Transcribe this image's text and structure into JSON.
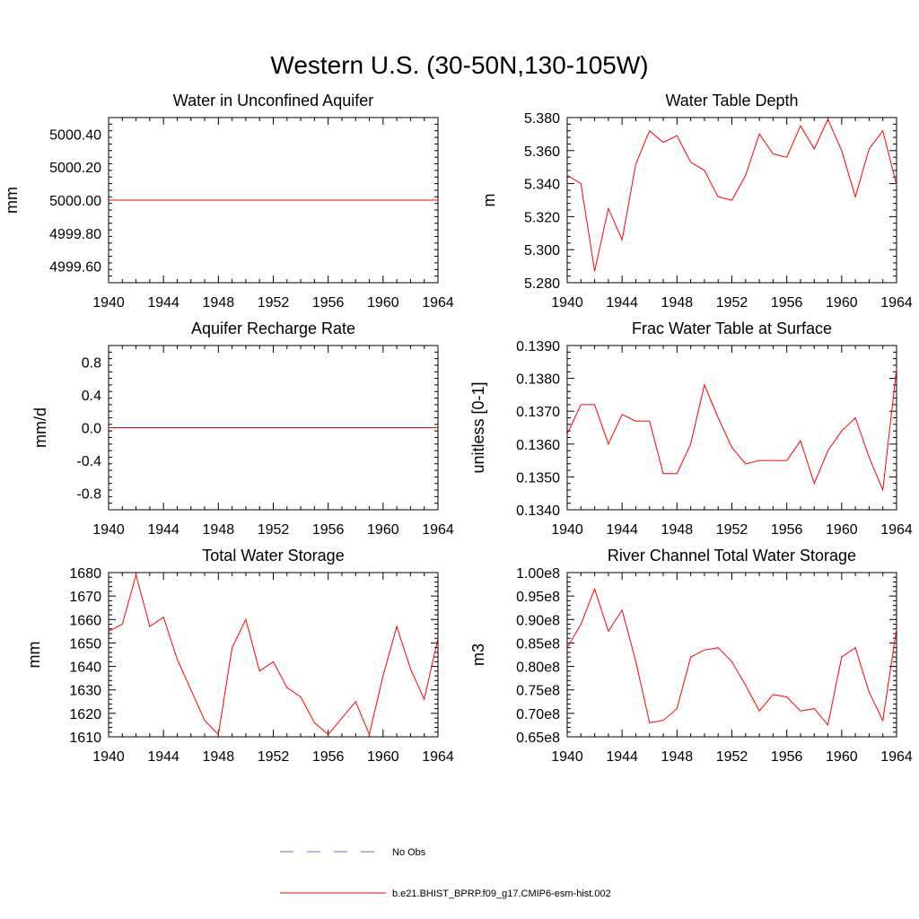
{
  "figure": {
    "title": "Western U.S. (30-50N,130-105W)"
  },
  "legend": {
    "entries": [
      {
        "label": "No Obs",
        "color": "#5b6fd6",
        "style": "dashed"
      },
      {
        "label": "b.e21.BHIST_BPRP.f09_g17.CMIP6-esm-hist.002",
        "color": "#ff0000",
        "style": "solid"
      }
    ]
  },
  "chart_data": [
    {
      "type": "line",
      "title": "Water in Unconfined Aquifer",
      "ylabel": "mm",
      "xlim": [
        1940,
        1964
      ],
      "ylim": [
        4999.5,
        5000.5
      ],
      "xticks": [
        1940,
        1944,
        1948,
        1952,
        1956,
        1960,
        1964
      ],
      "xtick_labels": [
        "1940",
        "1944",
        "1948",
        "1952",
        "1956",
        "1960",
        "1964"
      ],
      "yticks": [
        4999.6,
        4999.8,
        5000.0,
        5000.2,
        5000.4
      ],
      "ytick_labels": [
        "4999.60",
        "4999.80",
        "5000.00",
        "5000.20",
        "5000.40"
      ],
      "series": [
        {
          "color": "#ff0000",
          "x": [
            1940,
            1964
          ],
          "y": [
            5000.0,
            5000.0
          ]
        }
      ]
    },
    {
      "type": "line",
      "title": "Water Table Depth",
      "ylabel": "m",
      "xlim": [
        1940,
        1964
      ],
      "ylim": [
        5.28,
        5.38
      ],
      "xticks": [
        1940,
        1944,
        1948,
        1952,
        1956,
        1960,
        1964
      ],
      "xtick_labels": [
        "1940",
        "1944",
        "1948",
        "1952",
        "1956",
        "1960",
        "1964"
      ],
      "yticks": [
        5.28,
        5.3,
        5.32,
        5.34,
        5.36,
        5.38
      ],
      "ytick_labels": [
        "5.280",
        "5.300",
        "5.320",
        "5.340",
        "5.360",
        "5.380"
      ],
      "series": [
        {
          "color": "#ff0000",
          "x": [
            1940,
            1941,
            1942,
            1943,
            1944,
            1945,
            1946,
            1947,
            1948,
            1949,
            1950,
            1951,
            1952,
            1953,
            1954,
            1955,
            1956,
            1957,
            1958,
            1959,
            1960,
            1961,
            1962,
            1963,
            1964
          ],
          "y": [
            5.345,
            5.34,
            5.287,
            5.325,
            5.306,
            5.352,
            5.372,
            5.365,
            5.369,
            5.353,
            5.348,
            5.332,
            5.33,
            5.345,
            5.37,
            5.358,
            5.356,
            5.375,
            5.361,
            5.379,
            5.36,
            5.332,
            5.361,
            5.372,
            5.339
          ]
        }
      ]
    },
    {
      "type": "line",
      "title": "Aquifer Recharge Rate",
      "ylabel": "mm/d",
      "xlim": [
        1940,
        1964
      ],
      "ylim": [
        -1.0,
        1.0
      ],
      "xticks": [
        1940,
        1944,
        1948,
        1952,
        1956,
        1960,
        1964
      ],
      "xtick_labels": [
        "1940",
        "1944",
        "1948",
        "1952",
        "1956",
        "1960",
        "1964"
      ],
      "yticks": [
        -0.8,
        -0.4,
        0.0,
        0.4,
        0.8
      ],
      "ytick_labels": [
        "-0.8",
        "-0.4",
        "0.0",
        "0.4",
        "0.8"
      ],
      "series": [
        {
          "color": "#ff0000",
          "x": [
            1940,
            1964
          ],
          "y": [
            0.0,
            0.0
          ]
        }
      ]
    },
    {
      "type": "line",
      "title": "Frac Water Table at Surface",
      "ylabel": "unitless [0-1]",
      "xlim": [
        1940,
        1964
      ],
      "ylim": [
        0.134,
        0.139
      ],
      "xticks": [
        1940,
        1944,
        1948,
        1952,
        1956,
        1960,
        1964
      ],
      "xtick_labels": [
        "1940",
        "1944",
        "1948",
        "1952",
        "1956",
        "1960",
        "1964"
      ],
      "yticks": [
        0.134,
        0.135,
        0.136,
        0.137,
        0.138,
        0.139
      ],
      "ytick_labels": [
        "0.1340",
        "0.1350",
        "0.1360",
        "0.1370",
        "0.1380",
        "0.1390"
      ],
      "series": [
        {
          "color": "#ff0000",
          "x": [
            1940,
            1941,
            1942,
            1943,
            1944,
            1945,
            1946,
            1947,
            1948,
            1949,
            1950,
            1951,
            1952,
            1953,
            1954,
            1955,
            1956,
            1957,
            1958,
            1959,
            1960,
            1961,
            1962,
            1963,
            1964
          ],
          "y": [
            0.1363,
            0.1372,
            0.1372,
            0.136,
            0.1369,
            0.1367,
            0.1367,
            0.1351,
            0.1351,
            0.136,
            0.1378,
            0.1368,
            0.1359,
            0.1354,
            0.1355,
            0.1355,
            0.1355,
            0.1361,
            0.1348,
            0.1358,
            0.1364,
            0.1368,
            0.1356,
            0.1346,
            0.1383
          ]
        }
      ]
    },
    {
      "type": "line",
      "title": "Total Water Storage",
      "ylabel": "mm",
      "xlim": [
        1940,
        1964
      ],
      "ylim": [
        1610,
        1680
      ],
      "xticks": [
        1940,
        1944,
        1948,
        1952,
        1956,
        1960,
        1964
      ],
      "xtick_labels": [
        "1940",
        "1944",
        "1948",
        "1952",
        "1956",
        "1960",
        "1964"
      ],
      "yticks": [
        1610,
        1620,
        1630,
        1640,
        1650,
        1660,
        1670,
        1680
      ],
      "ytick_labels": [
        "1610",
        "1620",
        "1630",
        "1640",
        "1650",
        "1660",
        "1670",
        "1680"
      ],
      "series": [
        {
          "color": "#ff0000",
          "x": [
            1940,
            1941,
            1942,
            1943,
            1944,
            1945,
            1946,
            1947,
            1948,
            1949,
            1950,
            1951,
            1952,
            1953,
            1954,
            1955,
            1956,
            1957,
            1958,
            1959,
            1960,
            1961,
            1962,
            1963,
            1964
          ],
          "y": [
            1655,
            1658,
            1679,
            1657,
            1661,
            1643,
            1630,
            1617,
            1611,
            1648,
            1660,
            1638,
            1642,
            1631,
            1627,
            1616,
            1611,
            1618,
            1625,
            1611,
            1636,
            1657,
            1639,
            1626,
            1652
          ]
        }
      ]
    },
    {
      "type": "line",
      "title": "River Channel Total Water Storage",
      "ylabel": "m3",
      "xlim": [
        1940,
        1964
      ],
      "ylim": [
        65000000.0,
        100000000.0
      ],
      "xticks": [
        1940,
        1944,
        1948,
        1952,
        1956,
        1960,
        1964
      ],
      "xtick_labels": [
        "1940",
        "1944",
        "1948",
        "1952",
        "1956",
        "1960",
        "1964"
      ],
      "yticks": [
        65000000.0,
        70000000.0,
        75000000.0,
        80000000.0,
        85000000.0,
        90000000.0,
        95000000.0,
        100000000.0
      ],
      "ytick_labels": [
        "0.65e8",
        "0.70e8",
        "0.75e8",
        "0.80e8",
        "0.85e8",
        "0.90e8",
        "0.95e8",
        "1.00e8"
      ],
      "series": [
        {
          "color": "#ff0000",
          "x": [
            1940,
            1941,
            1942,
            1943,
            1944,
            1945,
            1946,
            1947,
            1948,
            1949,
            1950,
            1951,
            1952,
            1953,
            1954,
            1955,
            1956,
            1957,
            1958,
            1959,
            1960,
            1961,
            1962,
            1963,
            1964
          ],
          "y": [
            84000000.0,
            89000000.0,
            96500000.0,
            87500000.0,
            92000000.0,
            81000000.0,
            68000000.0,
            68500000.0,
            71000000.0,
            82000000.0,
            83500000.0,
            84000000.0,
            81000000.0,
            76000000.0,
            70500000.0,
            74000000.0,
            73500000.0,
            70500000.0,
            71000000.0,
            67500000.0,
            82000000.0,
            84000000.0,
            74500000.0,
            68500000.0,
            88000000.0
          ]
        }
      ]
    }
  ]
}
